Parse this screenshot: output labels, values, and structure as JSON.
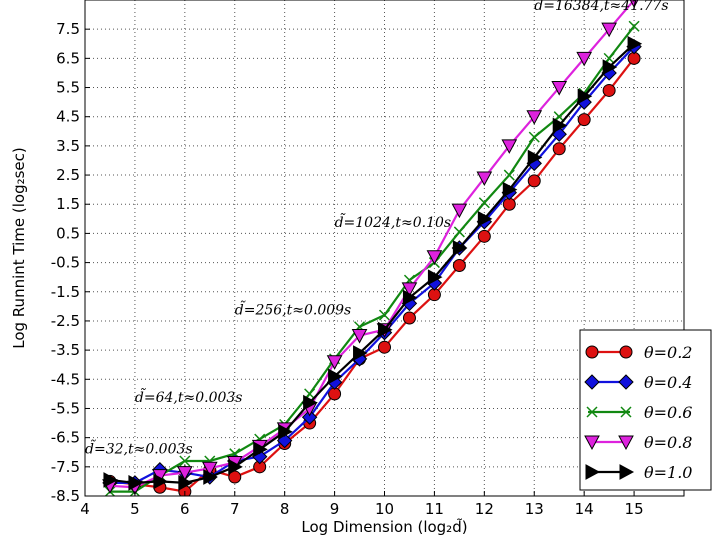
{
  "chart_data": {
    "type": "line",
    "xlabel": "Log Dimension (log₂d̃)",
    "ylabel": "Log Runnint Time (log₂sec)",
    "xlim": [
      4,
      16
    ],
    "ylim": [
      -8.5,
      8.5
    ],
    "xticks": [
      "4",
      "5",
      "6",
      "7",
      "8",
      "9",
      "10",
      "11",
      "12",
      "13",
      "14",
      "15"
    ],
    "yticks": [
      "-8.5",
      "-7.5",
      "-6.5",
      "-5.5",
      "-4.5",
      "-3.5",
      "-2.5",
      "-1.5",
      "-0.5",
      "0.5",
      "1.5",
      "2.5",
      "3.5",
      "4.5",
      "5.5",
      "6.5",
      "7.5"
    ],
    "grid": true,
    "legend_position": "bottom-right",
    "x": [
      4.5,
      5,
      5.5,
      6,
      6.5,
      7,
      7.5,
      8,
      8.5,
      9,
      9.5,
      10,
      10.5,
      11,
      11.5,
      12,
      12.5,
      13,
      13.5,
      14,
      14.5,
      15
    ],
    "series": [
      {
        "name": "θ=0.2",
        "color": "#dd1111",
        "marker": "circle",
        "values": [
          -8.0,
          -8.1,
          -8.2,
          -8.35,
          -7.6,
          -7.85,
          -7.5,
          -6.7,
          -6.0,
          -5.0,
          -3.8,
          -3.4,
          -2.4,
          -1.6,
          -0.6,
          0.4,
          1.5,
          2.3,
          3.4,
          4.4,
          5.4,
          6.5
        ]
      },
      {
        "name": "θ=0.4",
        "color": "#1111dd",
        "marker": "diamond",
        "values": [
          -8.05,
          -8.05,
          -7.6,
          -7.7,
          -7.85,
          -7.3,
          -7.15,
          -6.6,
          -5.8,
          -4.6,
          -3.8,
          -2.9,
          -1.9,
          -1.2,
          0.0,
          0.9,
          1.9,
          2.9,
          3.9,
          5.0,
          6.0,
          6.9
        ]
      },
      {
        "name": "θ=0.6",
        "color": "#118811",
        "marker": "x",
        "values": [
          -8.35,
          -8.35,
          -7.8,
          -7.3,
          -7.3,
          -7.05,
          -6.55,
          -6.05,
          -5.0,
          -3.8,
          -2.7,
          -2.3,
          -1.1,
          -0.5,
          0.55,
          1.55,
          2.5,
          3.8,
          4.5,
          5.3,
          6.5,
          7.6
        ]
      },
      {
        "name": "θ=0.8",
        "color": "#dd22dd",
        "marker": "triangle-down",
        "values": [
          -8.15,
          -8.2,
          -7.8,
          -7.7,
          -7.55,
          -7.35,
          -6.8,
          -6.2,
          -5.5,
          -3.9,
          -3.0,
          -2.8,
          -1.4,
          -0.3,
          1.3,
          2.4,
          3.5,
          4.5,
          5.5,
          6.5,
          7.5,
          8.5
        ]
      },
      {
        "name": "θ=1.0",
        "color": "#000000",
        "marker": "triangle-right",
        "values": [
          -7.95,
          -8.05,
          -8.0,
          -8.05,
          -7.85,
          -7.5,
          -6.9,
          -6.3,
          -5.3,
          -4.4,
          -3.6,
          -2.8,
          -1.7,
          -1.0,
          0.0,
          1.0,
          2.0,
          3.1,
          4.2,
          5.2,
          6.2,
          7.0
        ]
      }
    ],
    "annotations": [
      {
        "text": "d̃=32,t≈0.003s",
        "x": 4.0,
        "y": -7.05
      },
      {
        "text": "d̃=64,t≈0.003s",
        "x": 5.0,
        "y": -5.28
      },
      {
        "text": "d̃=256,t≈0.009s",
        "x": 7.0,
        "y": -2.28
      },
      {
        "text": "d̃=1024,t≈0.10s",
        "x": 9.0,
        "y": 0.72
      },
      {
        "text": "d̃=16384,t≈41.77s",
        "x": 13.0,
        "y": 8.15
      }
    ]
  }
}
